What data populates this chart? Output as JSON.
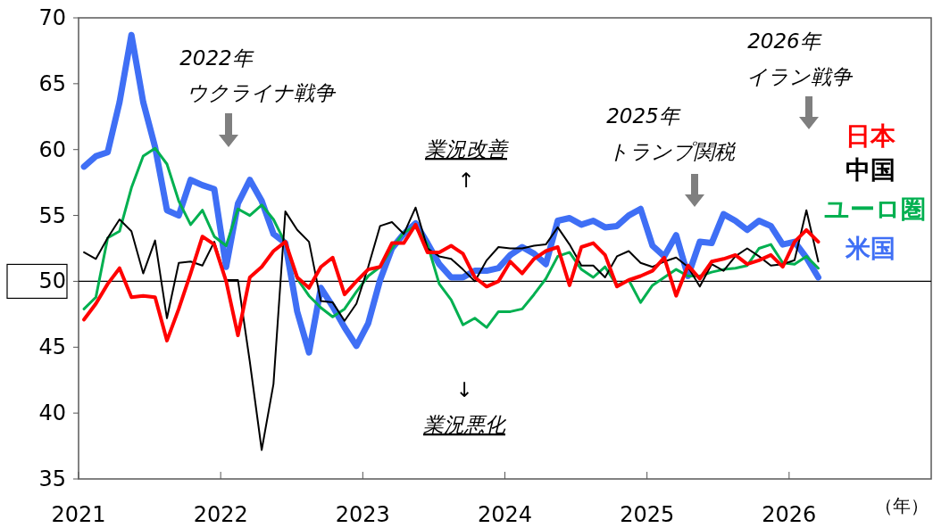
{
  "chart_data": {
    "type": "line",
    "xlabel": "（年）",
    "legend": "right",
    "line_style": "solid",
    "x": [
      "2021-01-15",
      "2021-02-15",
      "2021-03-15",
      "2021-04-15",
      "2021-05-15",
      "2021-06-15",
      "2021-07-15",
      "2021-08-15",
      "2021-09-15",
      "2021-10-15",
      "2021-11-15",
      "2021-12-15",
      "2022-01-15",
      "2022-02-15",
      "2022-03-15",
      "2022-04-15",
      "2022-05-15",
      "2022-06-15",
      "2022-07-15",
      "2022-08-15",
      "2022-09-15",
      "2022-10-15",
      "2022-11-15",
      "2022-12-15",
      "2023-01-15",
      "2023-02-15",
      "2023-03-15",
      "2023-04-15",
      "2023-05-15",
      "2023-06-15",
      "2023-07-15",
      "2023-08-15",
      "2023-09-15",
      "2023-10-15",
      "2023-11-15",
      "2023-12-15",
      "2024-01-15",
      "2024-02-15",
      "2024-03-15",
      "2024-04-15",
      "2024-05-15",
      "2024-06-15",
      "2024-07-15",
      "2024-08-15",
      "2024-09-15",
      "2024-10-15",
      "2024-11-15",
      "2024-12-15",
      "2025-01-15",
      "2025-02-15",
      "2025-03-15",
      "2025-04-15",
      "2025-05-15",
      "2025-06-15",
      "2025-07-15",
      "2025-08-15",
      "2025-09-15",
      "2025-10-15",
      "2025-11-15",
      "2025-12-15",
      "2026-01-15",
      "2026-02-15",
      "2026-03-15"
    ],
    "xlim": [
      "2021",
      "2027"
    ],
    "xticks": [
      "2021",
      "2022",
      "2023",
      "2024",
      "2025",
      "2026"
    ],
    "ylim": [
      35,
      70
    ],
    "yticks": [
      35,
      40,
      45,
      {
        "value": 50,
        "label": "50"
      },
      55,
      60,
      65,
      70
    ],
    "ref_lines": [
      {
        "axis": "y",
        "value": 50,
        "color": "#000000"
      }
    ],
    "series": [
      {
        "name": "日本",
        "color": "#ff0000",
        "values": [
          47.1,
          48.3,
          49.8,
          51.0,
          48.8,
          48.9,
          48.8,
          45.5,
          47.9,
          50.6,
          53.4,
          52.8,
          50.0,
          45.9,
          50.3,
          51.1,
          52.3,
          53.0,
          50.3,
          49.5,
          51.1,
          51.8,
          49.0,
          50.0,
          50.9,
          51.1,
          52.9,
          52.9,
          54.3,
          52.2,
          52.2,
          52.7,
          52.1,
          50.3,
          49.6,
          50.0,
          51.5,
          50.6,
          51.7,
          52.3,
          52.6,
          49.7,
          52.6,
          52.9,
          52.0,
          49.6,
          50.1,
          50.4,
          50.8,
          51.8,
          48.9,
          51.2,
          50.2,
          51.5,
          51.7,
          52.0,
          51.3,
          51.6,
          52.0,
          51.1,
          53.0,
          53.9,
          53.0
        ]
      },
      {
        "name": "中国",
        "color": "#000000",
        "values": [
          52.2,
          51.7,
          53.3,
          54.7,
          53.8,
          50.6,
          53.1,
          47.2,
          51.4,
          51.5,
          51.2,
          53.0,
          50.1,
          50.1,
          43.9,
          37.2,
          42.2,
          55.3,
          53.9,
          53.0,
          48.5,
          48.4,
          47.0,
          48.3,
          51.1,
          54.2,
          54.5,
          53.6,
          55.6,
          52.5,
          51.9,
          51.7,
          50.9,
          50.0,
          51.6,
          52.6,
          52.5,
          52.5,
          52.7,
          52.8,
          54.1,
          52.8,
          51.2,
          51.2,
          50.3,
          51.9,
          52.3,
          51.4,
          51.1,
          51.5,
          51.8,
          51.1,
          49.6,
          51.3,
          50.8,
          51.9,
          52.5,
          51.9,
          51.2,
          51.3,
          51.6,
          55.4,
          51.5
        ]
      },
      {
        "name": "ユーロ圏",
        "color": "#00b050",
        "values": [
          47.9,
          48.8,
          53.3,
          53.8,
          57.1,
          59.5,
          60.1,
          58.9,
          56.1,
          54.3,
          55.4,
          53.4,
          52.7,
          55.5,
          55.0,
          55.8,
          54.7,
          52.9,
          50.2,
          48.9,
          48.0,
          47.3,
          47.9,
          49.2,
          50.4,
          51.1,
          52.5,
          53.7,
          54.2,
          52.8,
          49.8,
          48.6,
          46.7,
          47.2,
          46.5,
          47.7,
          47.7,
          47.9,
          49.0,
          50.2,
          51.9,
          52.2,
          50.9,
          50.3,
          51.1,
          49.7,
          50.1,
          48.4,
          49.7,
          50.3,
          50.9,
          50.4,
          50.4,
          50.7,
          50.9,
          51.0,
          51.2,
          52.5,
          52.8,
          51.4,
          51.3,
          51.9,
          51.0
        ]
      },
      {
        "name": "米国",
        "color": "#3f6ff5",
        "values": [
          58.7,
          59.5,
          59.8,
          63.6,
          68.7,
          63.6,
          60.2,
          55.4,
          55.0,
          57.7,
          57.3,
          57.0,
          51.1,
          55.9,
          57.7,
          56.1,
          53.6,
          52.9,
          47.7,
          44.6,
          49.5,
          48.1,
          46.5,
          45.1,
          46.8,
          50.1,
          52.5,
          53.6,
          54.4,
          52.9,
          51.3,
          50.3,
          50.3,
          50.8,
          50.8,
          51.0,
          52.0,
          52.6,
          52.1,
          51.3,
          54.6,
          54.8,
          54.3,
          54.6,
          54.1,
          54.2,
          55.0,
          55.5,
          52.7,
          51.9,
          53.5,
          50.4,
          53.0,
          52.9,
          55.1,
          54.6,
          53.9,
          54.6,
          54.2,
          52.8,
          53.0,
          51.8,
          50.3
        ]
      }
    ],
    "annotations": [
      "2022年",
      "ウクライナ戦争",
      "業況改善",
      "↑",
      "↓",
      "業況悪化",
      "2025年",
      "トランプ関税",
      "2026年",
      "イラン戦争"
    ]
  }
}
